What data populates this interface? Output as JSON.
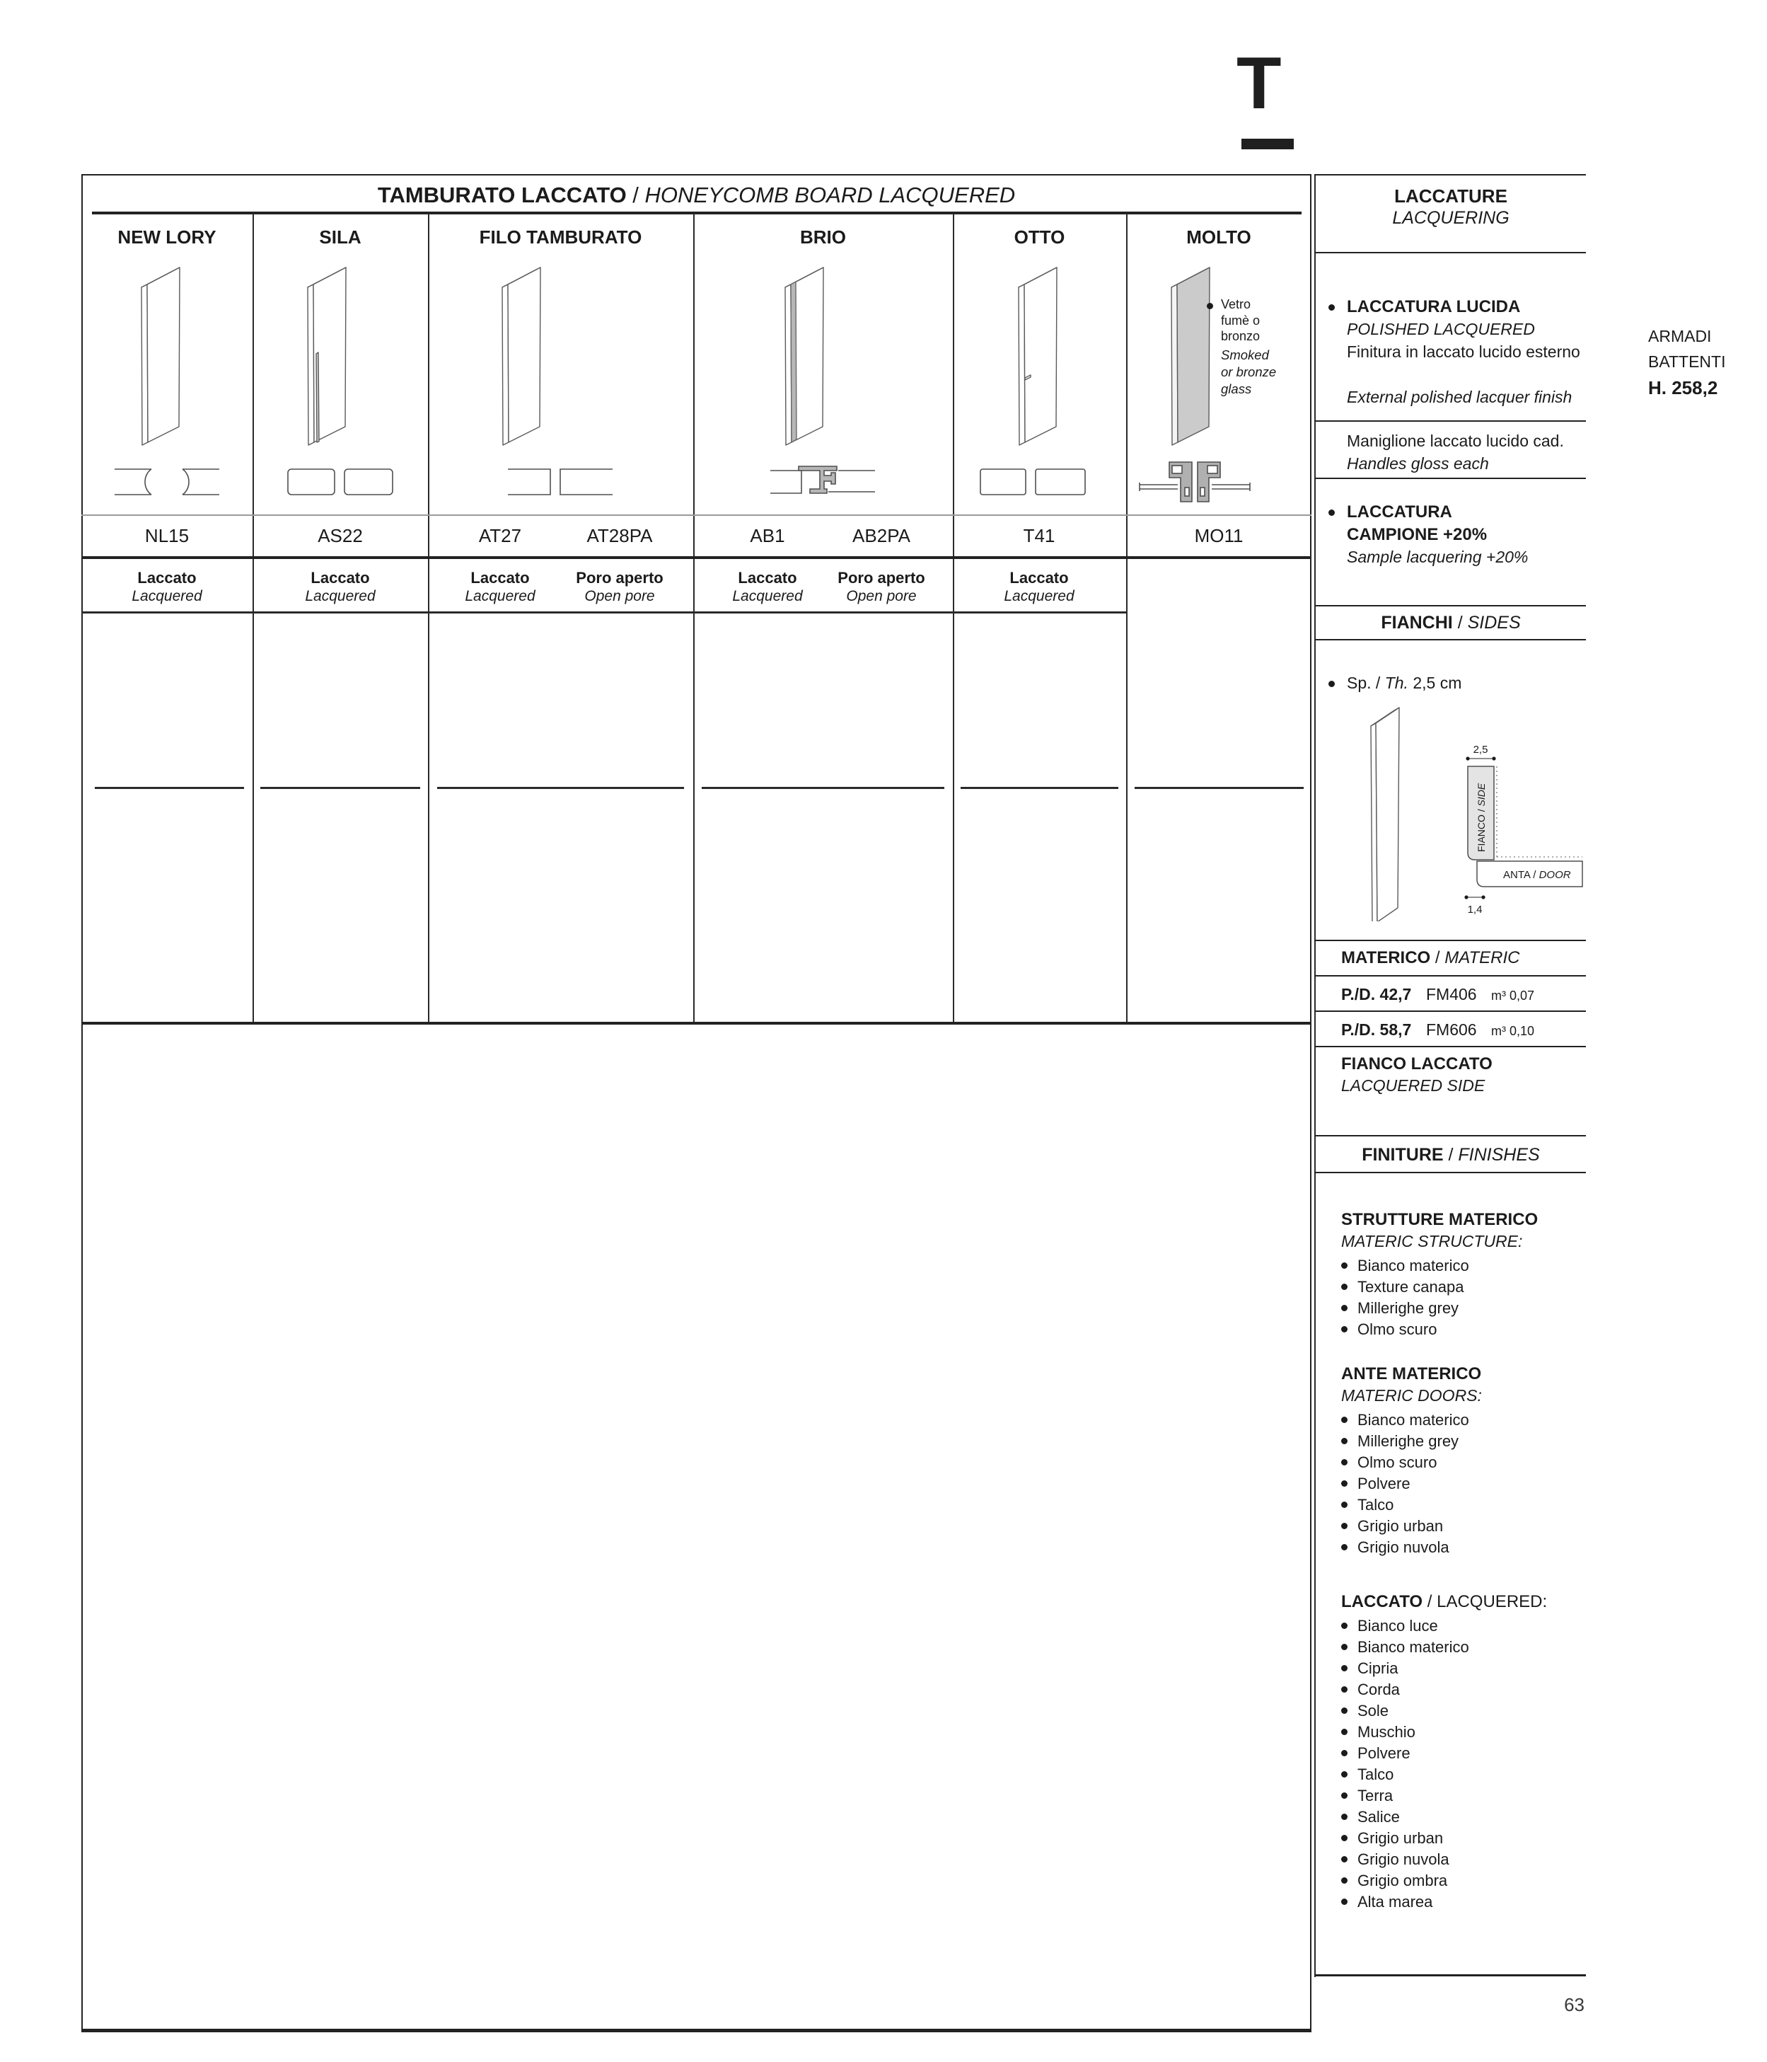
{
  "page": {
    "tab_letter": "T",
    "page_number": "63",
    "slash": " / "
  },
  "right_margin": {
    "line1": "ARMADI",
    "line2": "BATTENTI",
    "line3": "H. 258,2"
  },
  "table": {
    "title_it": "TAMBURATO LACCATO",
    "title_en": "HONEYCOMB BOARD LACQUERED",
    "columns": [
      {
        "name": "NEW LORY"
      },
      {
        "name": "SILA"
      },
      {
        "name": "FILO TAMBURATO"
      },
      {
        "name": "BRIO"
      },
      {
        "name": "OTTO"
      },
      {
        "name": "MOLTO"
      }
    ],
    "cells": [
      {
        "code": "NL15",
        "finish_it": "Laccato",
        "finish_en": "Lacquered"
      },
      {
        "code": "AS22",
        "finish_it": "Laccato",
        "finish_en": "Lacquered"
      },
      {
        "code": "AT27",
        "finish_it": "Laccato",
        "finish_en": "Lacquered"
      },
      {
        "code": "AT28PA",
        "finish_it": "Poro aperto",
        "finish_en": "Open pore"
      },
      {
        "code": "AB1",
        "finish_it": "Laccato",
        "finish_en": "Lacquered"
      },
      {
        "code": "AB2PA",
        "finish_it": "Poro aperto",
        "finish_en": "Open pore"
      },
      {
        "code": "T41",
        "finish_it": "Laccato",
        "finish_en": "Lacquered"
      },
      {
        "code": "MO11"
      }
    ],
    "molto_note_it": [
      "Vetro",
      "fumè o",
      "bronzo"
    ],
    "molto_note_en": [
      "Smoked",
      "or bronze",
      "glass"
    ]
  },
  "sidebar": {
    "laccature": {
      "title_it": "LACCATURE",
      "title_en": "LACQUERING"
    },
    "lucida": {
      "title_it": "LACCATURA LUCIDA",
      "title_en": "POLISHED LACQUERED",
      "desc_it": "Finitura in laccato lucido esterno",
      "desc_en": "External polished lacquer finish"
    },
    "maniglione_it": "Maniglione laccato lucido cad.",
    "maniglione_en": "Handles gloss each",
    "campione": {
      "line1": "LACCATURA",
      "line2": "CAMPIONE +20%",
      "en": "Sample lacquering +20%"
    },
    "fianchi": {
      "title_it": "FIANCHI",
      "title_en": "SIDES",
      "th_prefix": "Sp. /",
      "th_label": "Th.",
      "th_value": "2,5 cm",
      "dim_top": "2,5",
      "dim_bottom": "1,4",
      "side_label_it": "FIANCO",
      "side_label_en": "SIDE",
      "door_label_it": "ANTA",
      "door_label_en": "DOOR"
    },
    "materico": {
      "title_it": "MATERICO",
      "title_en": "MATERIC",
      "rows": [
        {
          "pd": "P./D. 42,7",
          "code": "FM406",
          "vol": "m³ 0,07"
        },
        {
          "pd": "P./D. 58,7",
          "code": "FM606",
          "vol": "m³ 0,10"
        }
      ],
      "side_it": "FIANCO LACCATO",
      "side_en": "LACQUERED SIDE"
    },
    "finiture": {
      "title_it": "FINITURE",
      "title_en": "FINISHES"
    },
    "strutture": {
      "title_it": "STRUTTURE MATERICO",
      "title_en": "MATERIC STRUCTURE:",
      "items": [
        "Bianco materico",
        "Texture canapa",
        "Millerighe grey",
        "Olmo scuro"
      ]
    },
    "ante": {
      "title_it": "ANTE MATERICO",
      "title_en": "MATERIC DOORS:",
      "items": [
        "Bianco materico",
        "Millerighe grey",
        "Olmo scuro",
        "Polvere",
        "Talco",
        "Grigio urban",
        "Grigio nuvola"
      ]
    },
    "laccato": {
      "title_it": "LACCATO",
      "title_en": "/ LACQUERED:",
      "items": [
        "Bianco luce",
        "Bianco materico",
        "Cipria",
        "Corda",
        "Sole",
        "Muschio",
        "Polvere",
        "Talco",
        "Terra",
        "Salice",
        "Grigio urban",
        "Grigio nuvola",
        "Grigio ombra",
        "Alta marea"
      ]
    }
  }
}
